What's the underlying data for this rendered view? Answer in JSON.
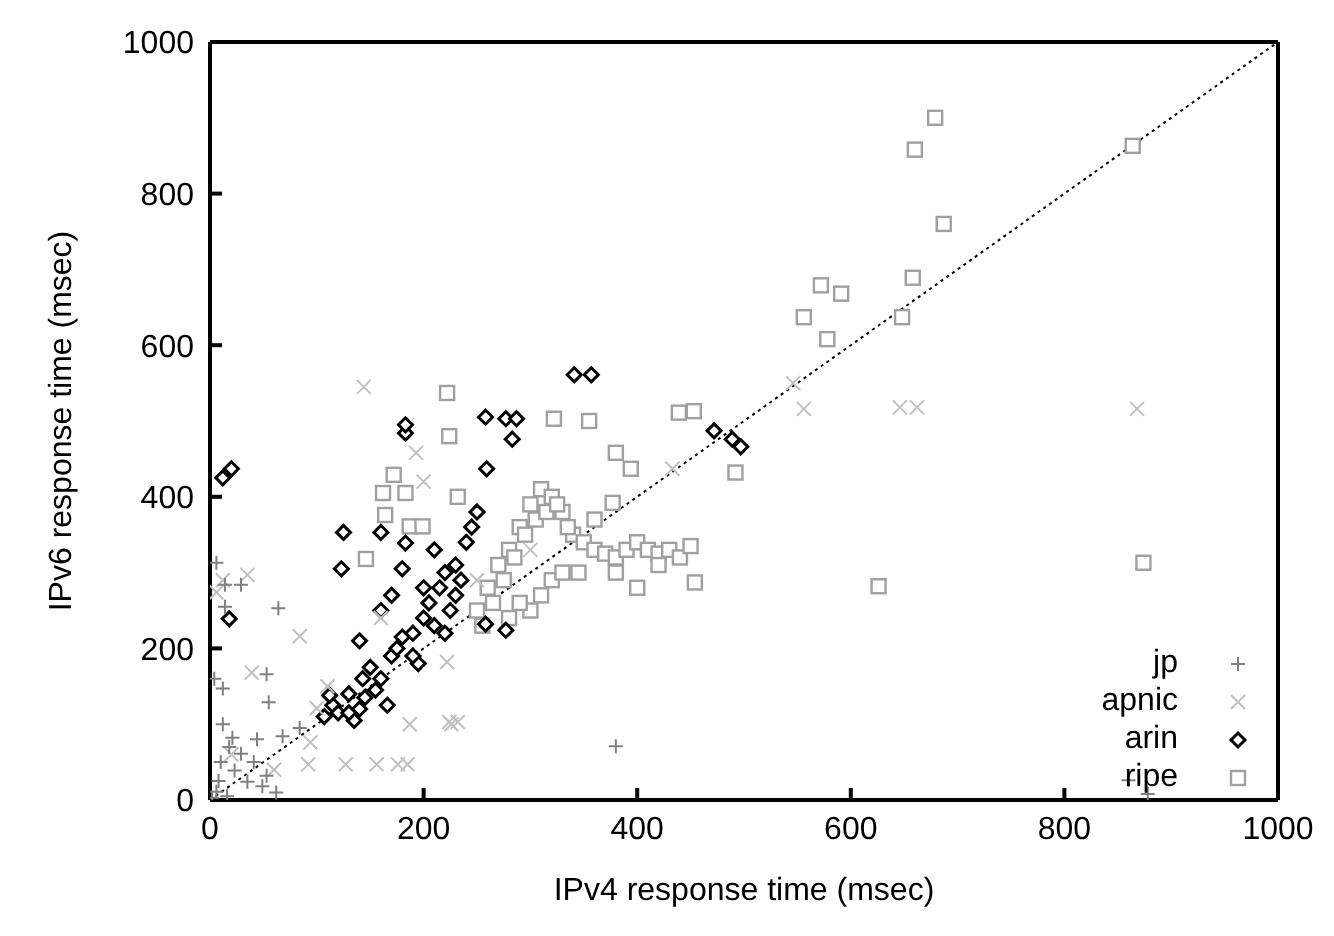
{
  "chart_data": {
    "type": "scatter",
    "xlabel": "IPv4 response time (msec)",
    "ylabel": "IPv6 response time (msec)",
    "xlim": [
      0,
      1000
    ],
    "ylim": [
      0,
      1000
    ],
    "xticks": [
      0,
      200,
      400,
      600,
      800,
      1000
    ],
    "yticks": [
      0,
      200,
      400,
      600,
      800,
      1000
    ],
    "grid": false,
    "legend": "bottom right",
    "series": [
      {
        "name": "jp",
        "color": "#808080",
        "marker": "plus",
        "x": [
          6,
          14,
          29,
          14,
          64,
          12,
          53,
          55,
          84,
          68,
          12,
          21,
          10,
          23,
          35,
          49,
          6,
          16,
          62,
          29,
          41,
          53,
          2,
          8,
          18,
          380,
          860,
          878,
          4,
          44
        ],
        "values": [
          313,
          284,
          284,
          255,
          253,
          147,
          166,
          129,
          95,
          84,
          100,
          82,
          50,
          39,
          24,
          18,
          11,
          5,
          10,
          61,
          50,
          32,
          3,
          25,
          70,
          71,
          26,
          8,
          160,
          80
        ]
      },
      {
        "name": "apnic",
        "color": "#c0c0c0",
        "marker": "cross",
        "x": [
          144,
          193,
          35,
          6,
          12,
          84,
          39,
          100,
          94,
          92,
          127,
          156,
          187,
          224,
          160,
          222,
          226,
          232,
          546,
          556,
          646,
          662,
          868,
          433,
          176,
          185,
          60,
          20,
          110,
          200,
          300,
          250
        ],
        "values": [
          545,
          458,
          297,
          274,
          290,
          216,
          168,
          121,
          76,
          47,
          47,
          47,
          100,
          103,
          240,
          182,
          100,
          103,
          550,
          516,
          518,
          518,
          516,
          437,
          47,
          47,
          40,
          60,
          150,
          420,
          330,
          290
        ]
      },
      {
        "name": "arin",
        "color": "#000000",
        "marker": "diamond",
        "x": [
          12,
          20,
          18,
          160,
          183,
          125,
          123,
          183,
          183,
          258,
          277,
          287,
          283,
          341,
          357,
          472,
          489,
          497,
          259,
          258,
          277,
          107,
          115,
          120,
          112,
          130,
          135,
          140,
          145,
          143,
          155,
          160,
          166,
          170,
          175,
          180,
          190,
          195,
          200,
          205,
          210,
          215,
          220,
          225,
          230,
          235,
          240,
          150,
          160,
          170,
          140,
          180,
          200,
          210,
          230,
          245,
          250,
          130,
          190,
          220
        ],
        "values": [
          425,
          437,
          239,
          353,
          339,
          353,
          305,
          484,
          495,
          505,
          503,
          503,
          476,
          561,
          561,
          487,
          476,
          466,
          437,
          232,
          224,
          110,
          125,
          115,
          138,
          140,
          105,
          120,
          135,
          160,
          145,
          160,
          125,
          190,
          200,
          215,
          220,
          180,
          240,
          260,
          230,
          280,
          300,
          250,
          310,
          290,
          340,
          175,
          250,
          270,
          210,
          305,
          280,
          330,
          270,
          360,
          380,
          115,
          190,
          220
        ]
      },
      {
        "name": "ripe",
        "color": "#a0a0a0",
        "marker": "square",
        "x": [
          679,
          660,
          687,
          658,
          572,
          591,
          556,
          648,
          864,
          874,
          626,
          578,
          222,
          322,
          355,
          439,
          453,
          380,
          394,
          492,
          454,
          377,
          224,
          172,
          162,
          164,
          183,
          146,
          187,
          199,
          232,
          250,
          260,
          270,
          280,
          290,
          300,
          310,
          320,
          330,
          340,
          350,
          360,
          370,
          380,
          390,
          400,
          410,
          420,
          430,
          440,
          450,
          255,
          265,
          275,
          285,
          295,
          305,
          315,
          325,
          335,
          345,
          300,
          310,
          320,
          330,
          280,
          290,
          360,
          380,
          400,
          420
        ],
        "values": [
          900,
          858,
          760,
          689,
          679,
          668,
          637,
          637,
          863,
          313,
          282,
          608,
          537,
          503,
          500,
          511,
          513,
          458,
          437,
          432,
          287,
          392,
          480,
          429,
          405,
          376,
          405,
          318,
          361,
          361,
          400,
          250,
          280,
          310,
          330,
          360,
          390,
          410,
          400,
          380,
          350,
          340,
          330,
          325,
          320,
          330,
          340,
          330,
          325,
          330,
          320,
          335,
          230,
          260,
          290,
          320,
          350,
          370,
          380,
          390,
          360,
          300,
          250,
          270,
          290,
          300,
          240,
          260,
          370,
          300,
          280,
          310
        ]
      },
      {
        "type": "line",
        "color": "#000000",
        "line_style": "dotted",
        "marker": "none",
        "x": [
          0,
          1000
        ],
        "values": [
          0,
          1000
        ]
      }
    ]
  }
}
